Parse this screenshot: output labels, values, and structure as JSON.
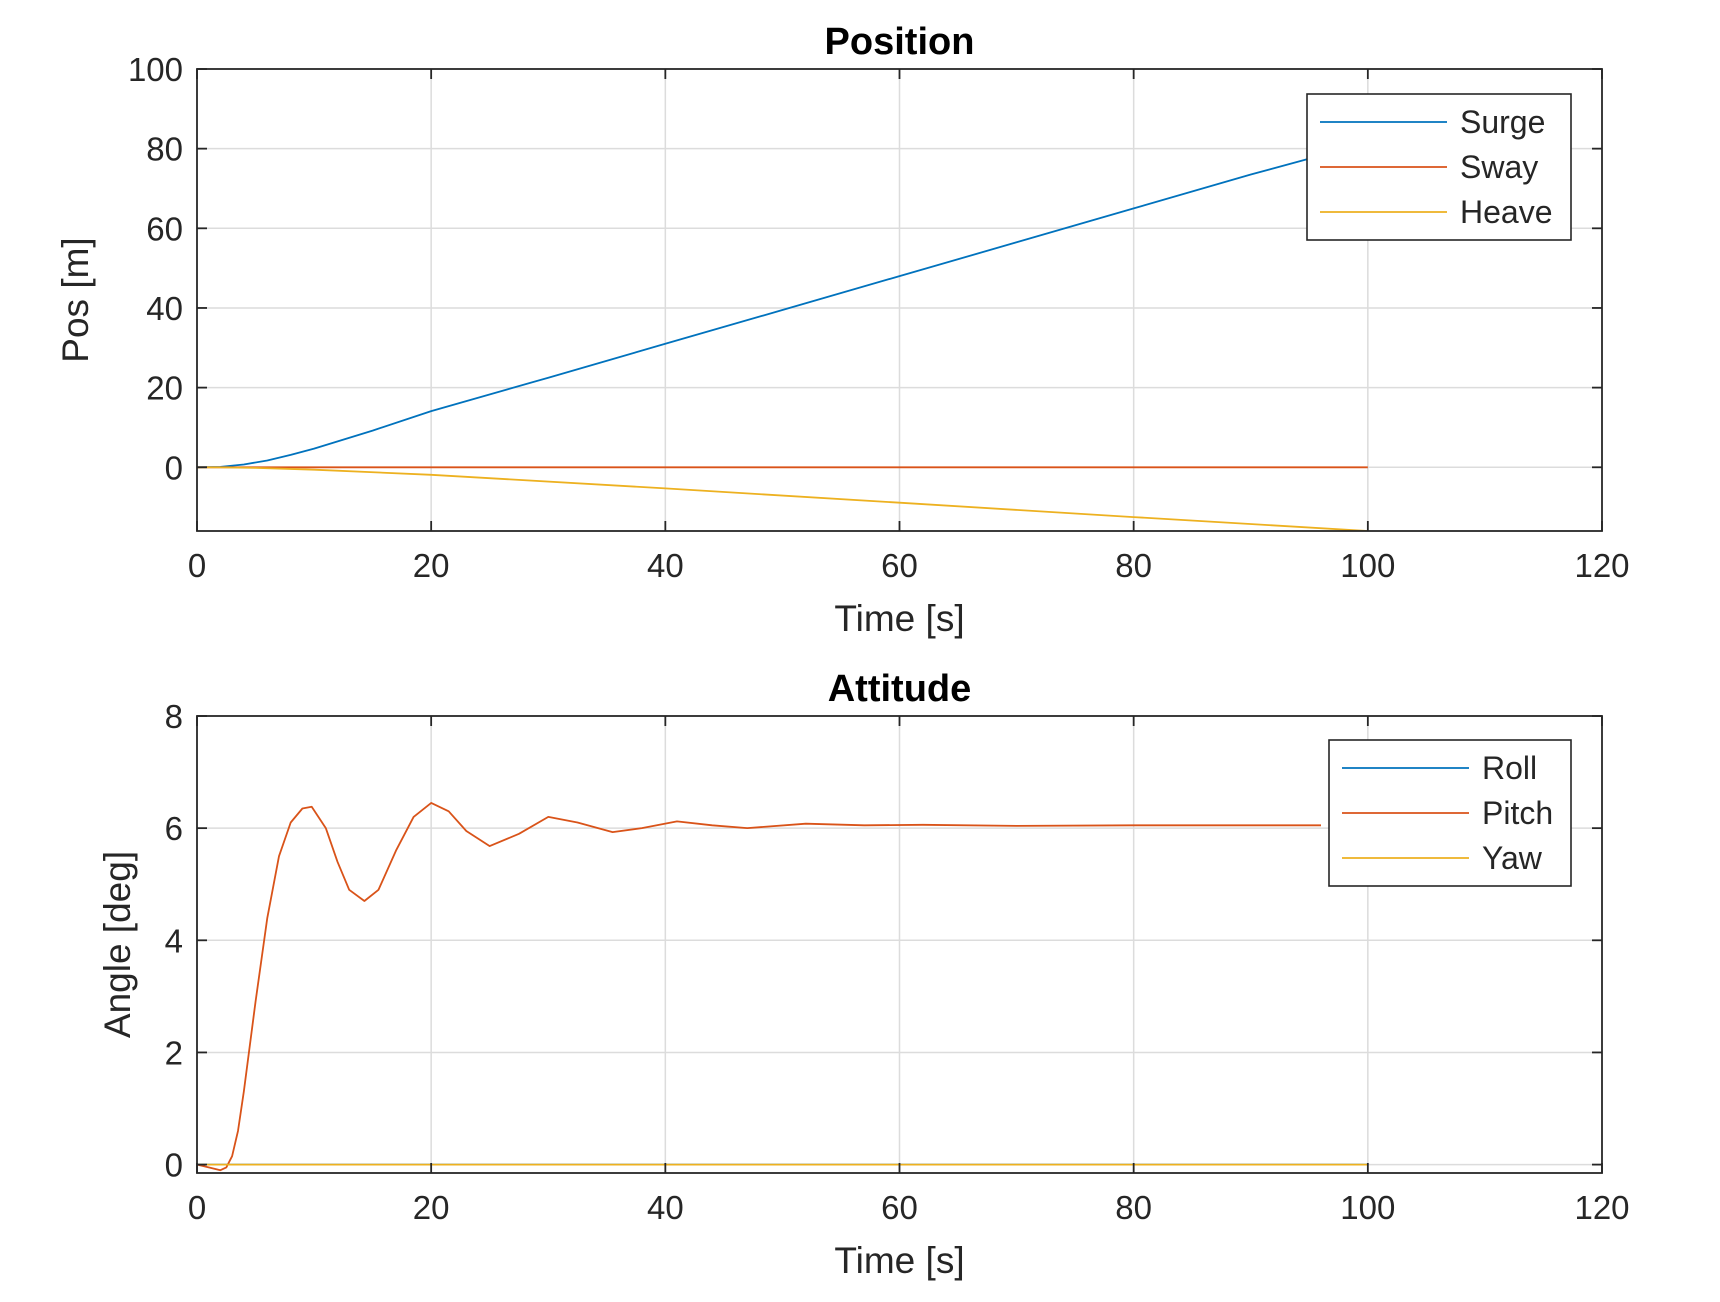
{
  "colors": {
    "series1": "#0072BD",
    "series2": "#D95319",
    "series3": "#EDB120"
  },
  "chart_data": [
    {
      "type": "line",
      "title": "Position",
      "xlabel": "Time [s]",
      "ylabel": "Pos [m]",
      "xlim": [
        0,
        120
      ],
      "ylim": [
        -16,
        100
      ],
      "xticks": [
        0,
        20,
        40,
        60,
        80,
        100,
        120
      ],
      "yticks": [
        0,
        20,
        40,
        60,
        80,
        100
      ],
      "grid": true,
      "legend_position": "top-right",
      "series": [
        {
          "name": "Surge",
          "color": "#0072BD",
          "x": [
            0,
            2,
            4,
            6,
            8,
            10,
            15,
            20,
            30,
            40,
            50,
            60,
            70,
            80,
            90,
            95
          ],
          "y": [
            0,
            0.1,
            0.7,
            1.7,
            3.1,
            4.7,
            9.2,
            14.1,
            22.5,
            31.0,
            39.5,
            48.0,
            56.5,
            65.0,
            73.5,
            77.5
          ]
        },
        {
          "name": "Sway",
          "color": "#D95319",
          "x": [
            0,
            100
          ],
          "y": [
            0,
            0
          ]
        },
        {
          "name": "Heave",
          "color": "#EDB120",
          "x": [
            0,
            2,
            5,
            10,
            20,
            40,
            60,
            80,
            100
          ],
          "y": [
            0,
            -0.02,
            -0.15,
            -0.6,
            -1.9,
            -5.3,
            -8.9,
            -12.5,
            -16
          ]
        }
      ]
    },
    {
      "type": "line",
      "title": "Attitude",
      "xlabel": "Time [s]",
      "ylabel": "Angle [deg]",
      "xlim": [
        0,
        120
      ],
      "ylim": [
        -0.15,
        8
      ],
      "xticks": [
        0,
        20,
        40,
        60,
        80,
        100,
        120
      ],
      "yticks": [
        0,
        2,
        4,
        6,
        8
      ],
      "grid": true,
      "legend_position": "top-right",
      "series": [
        {
          "name": "Roll",
          "color": "#0072BD",
          "x": [
            0,
            100
          ],
          "y": [
            0,
            0
          ]
        },
        {
          "name": "Pitch",
          "color": "#D95319",
          "x": [
            0,
            1,
            2,
            2.5,
            3,
            3.5,
            4,
            5,
            6,
            7,
            8,
            9,
            9.8,
            11,
            12,
            13,
            14.3,
            15.5,
            17,
            18.5,
            20,
            21.5,
            23,
            25,
            27.5,
            30,
            32.5,
            35.5,
            38,
            41,
            44,
            47,
            52,
            57,
            62,
            70,
            80,
            90,
            96
          ],
          "y": [
            0,
            -0.05,
            -0.1,
            -0.05,
            0.15,
            0.6,
            1.3,
            2.9,
            4.4,
            5.5,
            6.1,
            6.35,
            6.38,
            6.0,
            5.4,
            4.9,
            4.7,
            4.9,
            5.6,
            6.2,
            6.45,
            6.3,
            5.95,
            5.68,
            5.9,
            6.2,
            6.1,
            5.93,
            6.0,
            6.12,
            6.05,
            6.0,
            6.08,
            6.05,
            6.06,
            6.04,
            6.05,
            6.05,
            6.05
          ]
        },
        {
          "name": "Yaw",
          "color": "#EDB120",
          "x": [
            0,
            100
          ],
          "y": [
            0,
            0
          ]
        }
      ]
    }
  ]
}
